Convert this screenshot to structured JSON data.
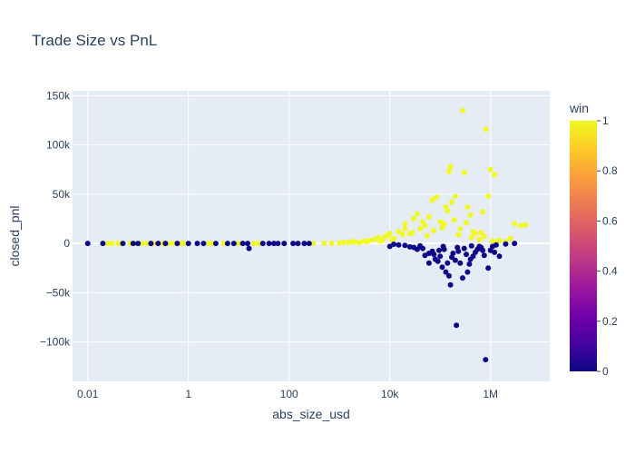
{
  "chart_data": {
    "type": "scatter",
    "title": "Trade Size vs PnL",
    "xlabel": "abs_size_usd",
    "ylabel": "closed_pnl",
    "x_scale": "log",
    "xlim": [
      0.005,
      15000000
    ],
    "ylim": [
      -140000,
      155000
    ],
    "x_ticks": [
      {
        "value": 0.01,
        "label": "0.01"
      },
      {
        "value": 1,
        "label": "1"
      },
      {
        "value": 100,
        "label": "100"
      },
      {
        "value": 10000,
        "label": "10k"
      },
      {
        "value": 1000000,
        "label": "1M"
      }
    ],
    "y_ticks": [
      {
        "value": 150000,
        "label": "150k"
      },
      {
        "value": 100000,
        "label": "100k"
      },
      {
        "value": 50000,
        "label": "50k"
      },
      {
        "value": 0,
        "label": "0"
      },
      {
        "value": -50000,
        "label": "−50k"
      },
      {
        "value": -100000,
        "label": "−100k"
      }
    ],
    "colorbar": {
      "title": "win",
      "ticks": [
        {
          "value": 1,
          "label": "1"
        },
        {
          "value": 0.8,
          "label": "0.8"
        },
        {
          "value": 0.6,
          "label": "0.6"
        },
        {
          "value": 0.4,
          "label": "0.4"
        },
        {
          "value": 0.2,
          "label": "0.2"
        },
        {
          "value": 0,
          "label": "0"
        }
      ],
      "colorscale": [
        "#0d0887",
        "#46039f",
        "#7201a8",
        "#9c179e",
        "#bd3786",
        "#d8576b",
        "#ed7953",
        "#fb9f3a",
        "#fdca26",
        "#f0f921"
      ]
    },
    "colors": {
      "win": "#f0f921",
      "loss": "#0d0887",
      "plot_bg": "#e5ecf6",
      "grid": "#ffffff",
      "text": "#2a3f5f"
    },
    "grid": true,
    "series": [
      {
        "win": 1,
        "points": [
          [
            0.02,
            0
          ],
          [
            0.025,
            0
          ],
          [
            0.03,
            0
          ],
          [
            0.04,
            0
          ],
          [
            0.045,
            0
          ],
          [
            0.07,
            0
          ],
          [
            0.09,
            0
          ],
          [
            0.12,
            0
          ],
          [
            0.15,
            0
          ],
          [
            0.2,
            0
          ],
          [
            0.3,
            0
          ],
          [
            0.4,
            0
          ],
          [
            0.5,
            0
          ],
          [
            0.7,
            0
          ],
          [
            0.8,
            0
          ],
          [
            2.5,
            0
          ],
          [
            3,
            0
          ],
          [
            5,
            0
          ],
          [
            10,
            0
          ],
          [
            20,
            0
          ],
          [
            25,
            0
          ],
          [
            300,
            200
          ],
          [
            500,
            300
          ],
          [
            700,
            400
          ],
          [
            1000,
            500
          ],
          [
            1500,
            800
          ],
          [
            2000,
            1500
          ],
          [
            2500,
            1000
          ],
          [
            3000,
            2500
          ],
          [
            4000,
            3000
          ],
          [
            5000,
            4000
          ],
          [
            6000,
            6000
          ],
          [
            7000,
            3000
          ],
          [
            8000,
            7000
          ],
          [
            9000,
            8000
          ],
          [
            10000,
            10000
          ],
          [
            12000,
            5000
          ],
          [
            15000,
            12000
          ],
          [
            20000,
            15000
          ],
          [
            20000,
            20000
          ],
          [
            25000,
            10000
          ],
          [
            30000,
            25000
          ],
          [
            35000,
            30000
          ],
          [
            40000,
            15000
          ],
          [
            45000,
            22000
          ],
          [
            50000,
            18000
          ],
          [
            60000,
            27000
          ],
          [
            70000,
            44000
          ],
          [
            85000,
            47000
          ],
          [
            100000,
            22000
          ],
          [
            120000,
            20000
          ],
          [
            130000,
            37000
          ],
          [
            140000,
            33000
          ],
          [
            150000,
            73000
          ],
          [
            160000,
            78000
          ],
          [
            170000,
            42000
          ],
          [
            200000,
            48000
          ],
          [
            250000,
            15000
          ],
          [
            280000,
            135000
          ],
          [
            300000,
            72000
          ],
          [
            350000,
            37000
          ],
          [
            400000,
            29000
          ],
          [
            450000,
            12000
          ],
          [
            500000,
            10000
          ],
          [
            700000,
            32000
          ],
          [
            800000,
            116000
          ],
          [
            900000,
            48000
          ],
          [
            1000000,
            75000
          ],
          [
            1200000,
            70000
          ],
          [
            1500000,
            3000
          ],
          [
            2000000,
            2000
          ],
          [
            2500000,
            5000
          ],
          [
            3000000,
            20000
          ],
          [
            4000000,
            18000
          ],
          [
            5000000,
            19000
          ],
          [
            1200,
            1200
          ],
          [
            1800,
            2000
          ],
          [
            3500,
            1800
          ],
          [
            6500,
            2200
          ],
          [
            11000,
            3500
          ],
          [
            18000,
            9000
          ],
          [
            28000,
            11000
          ],
          [
            55000,
            8000
          ],
          [
            75000,
            13000
          ],
          [
            110000,
            16000
          ],
          [
            190000,
            24000
          ],
          [
            230000,
            9000
          ],
          [
            330000,
            21000
          ],
          [
            420000,
            6000
          ],
          [
            600000,
            4000
          ],
          [
            650000,
            11000
          ],
          [
            750000,
            7000
          ],
          [
            1100000,
            2500
          ],
          [
            1300000,
            1500
          ]
        ]
      },
      {
        "win": 0,
        "points": [
          [
            0.01,
            0
          ],
          [
            0.02,
            0
          ],
          [
            0.05,
            0
          ],
          [
            0.08,
            0
          ],
          [
            0.1,
            0
          ],
          [
            0.18,
            0
          ],
          [
            0.25,
            0
          ],
          [
            0.35,
            0
          ],
          [
            0.6,
            0
          ],
          [
            1,
            0
          ],
          [
            1.5,
            0
          ],
          [
            2,
            0
          ],
          [
            3.5,
            0
          ],
          [
            6,
            0
          ],
          [
            8,
            0
          ],
          [
            12,
            0
          ],
          [
            15,
            0
          ],
          [
            30,
            0
          ],
          [
            40,
            0
          ],
          [
            50,
            0
          ],
          [
            60,
            0
          ],
          [
            80,
            0
          ],
          [
            120,
            0
          ],
          [
            150,
            0
          ],
          [
            200,
            0
          ],
          [
            250,
            0
          ],
          [
            16,
            -5000
          ],
          [
            10000,
            -3000
          ],
          [
            12000,
            -800
          ],
          [
            15000,
            -1500
          ],
          [
            20000,
            -2000
          ],
          [
            25000,
            -3500
          ],
          [
            30000,
            -4000
          ],
          [
            35000,
            -6000
          ],
          [
            40000,
            -2500
          ],
          [
            45000,
            -5000
          ],
          [
            50000,
            -12000
          ],
          [
            60000,
            -10000
          ],
          [
            70000,
            -8000
          ],
          [
            80000,
            -16000
          ],
          [
            90000,
            -18000
          ],
          [
            100000,
            -13000
          ],
          [
            110000,
            -24000
          ],
          [
            120000,
            -6000
          ],
          [
            130000,
            -29000
          ],
          [
            140000,
            -20000
          ],
          [
            150000,
            -33000
          ],
          [
            160000,
            -42000
          ],
          [
            180000,
            -10000
          ],
          [
            200000,
            -17000
          ],
          [
            220000,
            -4000
          ],
          [
            250000,
            -20000
          ],
          [
            280000,
            -35000
          ],
          [
            300000,
            -5000
          ],
          [
            350000,
            -29000
          ],
          [
            400000,
            -16000
          ],
          [
            450000,
            -13000
          ],
          [
            500000,
            -9000
          ],
          [
            600000,
            -3000
          ],
          [
            700000,
            -7000
          ],
          [
            800000,
            -118000
          ],
          [
            900000,
            -25000
          ],
          [
            1000000,
            -7000
          ],
          [
            1200000,
            -9000
          ],
          [
            1500000,
            -13000
          ],
          [
            2000000,
            -500
          ],
          [
            3000000,
            0
          ],
          [
            210000,
            -83000
          ],
          [
            60000,
            -20000
          ],
          [
            75000,
            -11000
          ],
          [
            95000,
            -7000
          ],
          [
            115000,
            -3000
          ],
          [
            170000,
            -14000
          ],
          [
            230000,
            -8000
          ],
          [
            330000,
            -11000
          ],
          [
            380000,
            -21000
          ],
          [
            420000,
            -2500
          ],
          [
            550000,
            -6000
          ],
          [
            650000,
            -4000
          ],
          [
            750000,
            -12000
          ],
          [
            1100000,
            -3000
          ],
          [
            1300000,
            -1500
          ]
        ]
      }
    ]
  }
}
